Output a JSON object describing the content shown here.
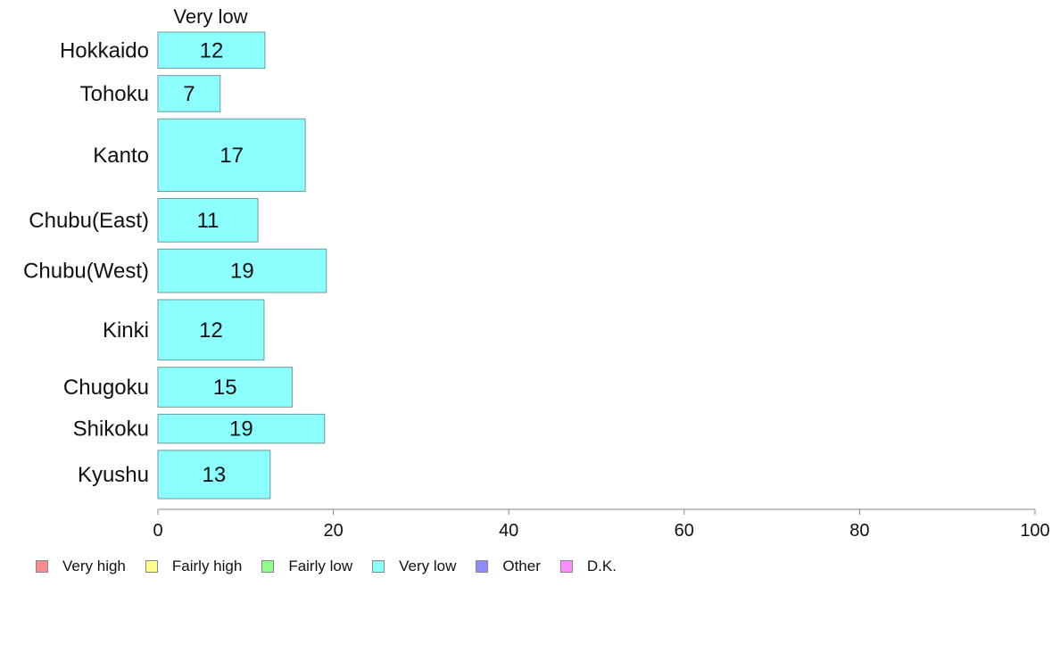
{
  "chart_data": {
    "type": "bar",
    "orientation": "horizontal",
    "stacked": true,
    "title": "",
    "xlabel": "",
    "ylabel": "",
    "xlim": [
      0,
      100
    ],
    "xticks": [
      0,
      20,
      40,
      60,
      80,
      100
    ],
    "grid": false,
    "legend_position": "bottom",
    "column_header": "Very low",
    "categories": [
      "Hokkaido",
      "Tohoku",
      "Kanto",
      "Chubu(East)",
      "Chubu(West)",
      "Kinki",
      "Chugoku",
      "Shikoku",
      "Kyushu"
    ],
    "relative_widths": [
      3,
      3,
      6,
      3.6,
      3.6,
      5,
      3.3,
      2.4,
      4
    ],
    "series": [
      {
        "name": "Very low",
        "color": "#8cffff",
        "values": [
          12.2,
          7.1,
          16.8,
          11.4,
          19.2,
          12.1,
          15.3,
          19.0,
          12.8
        ],
        "labels": [
          "12",
          "7",
          "17",
          "11",
          "19",
          "12",
          "15",
          "19",
          "13"
        ]
      }
    ],
    "legend": [
      {
        "label": "Very high",
        "color": "#ff8c8c"
      },
      {
        "label": "Fairly high",
        "color": "#ffff8c"
      },
      {
        "label": "Fairly low",
        "color": "#8cff8c"
      },
      {
        "label": "Very low",
        "color": "#8cffff"
      },
      {
        "label": "Other",
        "color": "#8c8cff"
      },
      {
        "label": "D.K.",
        "color": "#ff8cff"
      }
    ]
  }
}
